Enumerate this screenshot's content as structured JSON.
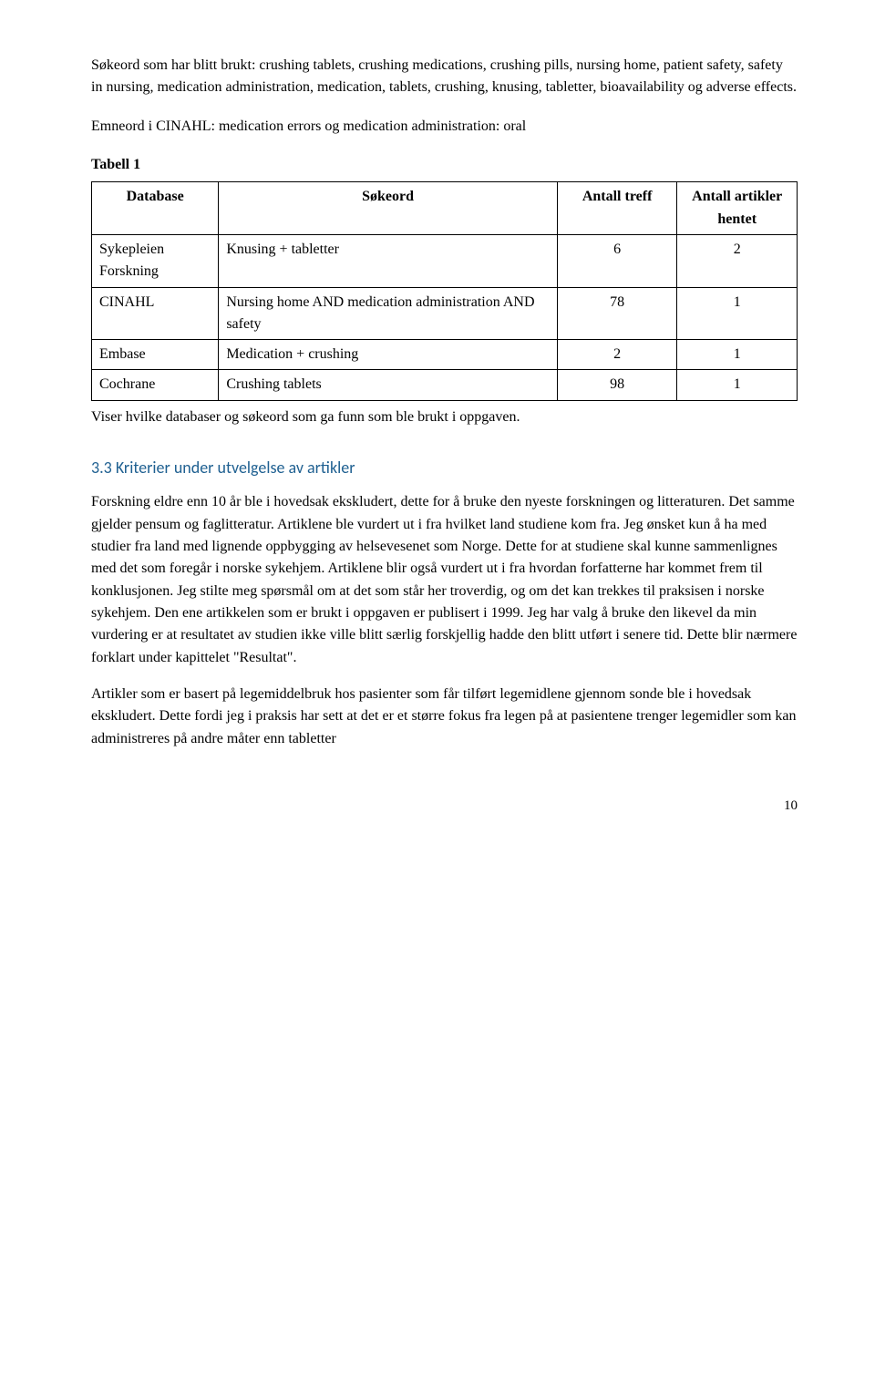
{
  "intro_para": "Søkeord som har blitt brukt: crushing tablets, crushing medications, crushing pills, nursing home, patient safety, safety in nursing, medication administration, medication, tablets, crushing, knusing, tabletter, bioavailability og adverse effects.",
  "emneord_para": "Emneord i CINAHL: medication errors og medication administration: oral",
  "table": {
    "label": "Tabell 1",
    "columns": [
      "Database",
      "Søkeord",
      "Antall treff",
      "Antall artikler hentet"
    ],
    "rows": [
      {
        "db": "Sykepleien Forskning",
        "search": "Knusing + tabletter",
        "hits": "6",
        "articles": "2"
      },
      {
        "db": "CINAHL",
        "search": "Nursing home AND medication administration AND safety",
        "hits": "78",
        "articles": "1"
      },
      {
        "db": "Embase",
        "search": "Medication + crushing",
        "hits": "2",
        "articles": "1"
      },
      {
        "db": "Cochrane",
        "search": "Crushing tablets",
        "hits": "98",
        "articles": "1"
      }
    ],
    "caption": "Viser hvilke databaser og søkeord som ga funn som ble brukt i oppgaven.",
    "border_color": "#000000",
    "background": "#ffffff"
  },
  "section_heading": "3.3 Kriterier under utvelgelse av artikler",
  "body_para_1": "Forskning eldre enn 10 år ble i hovedsak ekskludert, dette for å bruke den nyeste forskningen og litteraturen. Det samme gjelder pensum og faglitteratur. Artiklene ble vurdert ut i fra hvilket land studiene kom fra. Jeg ønsket kun å ha med studier fra land med lignende oppbygging av helsevesenet som Norge. Dette for at studiene skal kunne sammenlignes med det som foregår i norske sykehjem. Artiklene blir også vurdert ut i fra hvordan forfatterne har kommet frem til konklusjonen. Jeg stilte meg spørsmål om at det som står her troverdig, og om det kan trekkes til praksisen i norske sykehjem. Den ene artikkelen som er brukt i oppgaven er publisert i 1999. Jeg har valg å bruke den likevel da min vurdering er at resultatet av studien ikke ville blitt særlig forskjellig hadde den blitt utført i senere tid. Dette blir nærmere forklart under kapittelet \"Resultat\".",
  "body_para_2": "Artikler som er basert på legemiddelbruk hos pasienter som får tilført legemidlene gjennom sonde ble i hovedsak ekskludert. Dette fordi jeg i praksis har sett at det er et større fokus fra legen på at pasientene trenger legemidler som kan administreres på andre måter enn tabletter",
  "page_number": "10",
  "colors": {
    "heading": "#1f6091",
    "text": "#000000",
    "background": "#ffffff"
  },
  "fonts": {
    "body_family": "Times New Roman",
    "heading_family": "Calibri",
    "body_size_pt": 12,
    "heading_size_pt": 13
  }
}
